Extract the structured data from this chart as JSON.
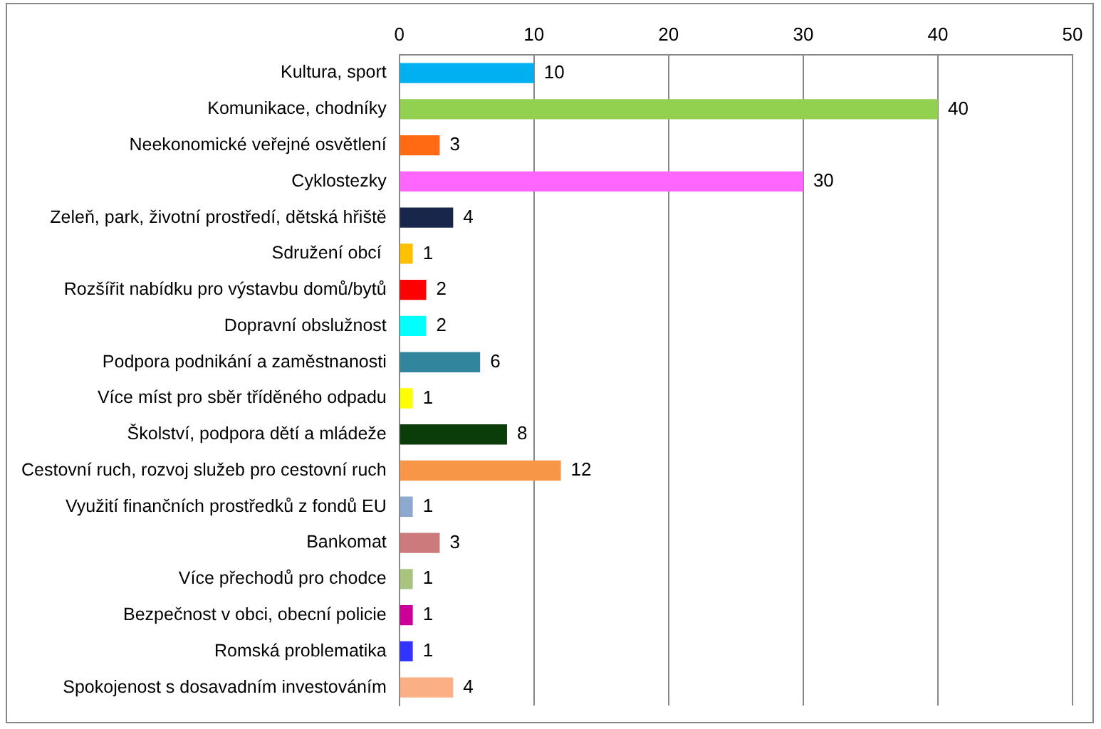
{
  "chart_data": {
    "type": "bar",
    "orientation": "horizontal",
    "categories": [
      "Kultura, sport",
      "Komunikace, chodníky",
      "Neekonomické veřejné osvětlení",
      "Cyklostezky",
      "Zeleň, park, životní prostředí, dětská hřiště",
      "Sdružení obcí ",
      "Rozšířit nabídku pro výstavbu domů/bytů",
      "Dopravní obslužnost",
      "Podpora podnikání a zaměstnanosti",
      "Více míst pro sběr tříděného odpadu",
      "Školství, podpora dětí a mládeže",
      "Cestovní ruch, rozvoj služeb pro cestovní ruch",
      "Využití finančních prostředků z fondů EU",
      "Bankomat",
      "Více přechodů pro chodce",
      "Bezpečnost v obci, obecní policie",
      "Romská problematika",
      "Spokojenost s dosavadním investováním"
    ],
    "values": [
      10,
      40,
      3,
      30,
      4,
      1,
      2,
      2,
      6,
      1,
      8,
      12,
      1,
      3,
      1,
      1,
      1,
      4
    ],
    "colors": [
      "#00b0f0",
      "#92d050",
      "#ff6a13",
      "#ff66ff",
      "#17264a",
      "#ffc000",
      "#ff0000",
      "#00ffff",
      "#31859c",
      "#ffff00",
      "#0a3d0a",
      "#f79646",
      "#8ea9d0",
      "#cc7a7a",
      "#a9c47f",
      "#cc0099",
      "#3333ff",
      "#fab084"
    ],
    "xlim": [
      0,
      50
    ],
    "xticks": [
      0,
      10,
      20,
      30,
      40,
      50
    ],
    "grid": "x",
    "data_labels": true,
    "legend": false
  }
}
